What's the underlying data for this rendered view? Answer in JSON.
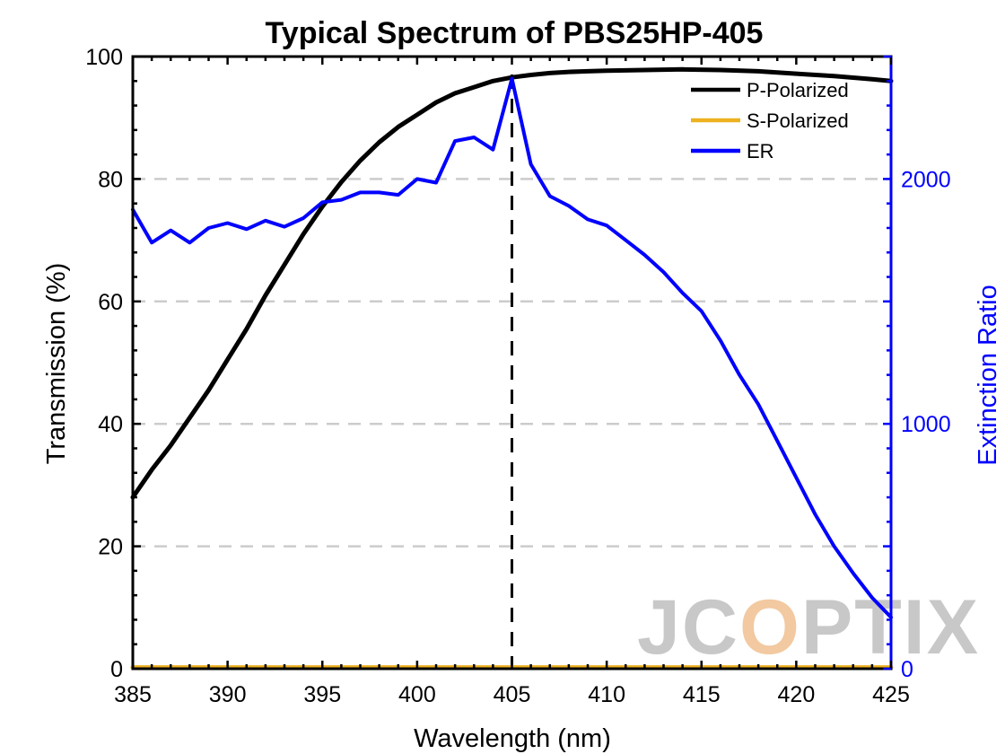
{
  "chart_data": {
    "type": "line",
    "title": "Typical Spectrum of PBS25HP-405",
    "xlabel": "Wavelength (nm)",
    "ylabel": "Transmission (%)",
    "y2label": "Extinction Ratio",
    "xlim": [
      385,
      425
    ],
    "ylim": [
      0,
      100
    ],
    "y2lim": [
      0,
      2500
    ],
    "xticks": [
      385,
      390,
      395,
      400,
      405,
      410,
      415,
      420,
      425
    ],
    "yticks": [
      0,
      20,
      40,
      60,
      80,
      100
    ],
    "y2ticks": [
      0,
      1000,
      2000
    ],
    "grid": "horizontal dashed",
    "legend_position": "top-right",
    "reference_line_x": 405,
    "watermark": "JCOPTIX",
    "colors": {
      "p_polarized": "#000000",
      "s_polarized": "#EDB120",
      "er": "#0000FF",
      "y2_axis": "#0000FF",
      "grid": "#cccccc",
      "watermark": "#c8c8c8",
      "watermark_accent": "#f2c9a0"
    },
    "series": [
      {
        "name": "P-Polarized",
        "axis": "left",
        "x": [
          385,
          386,
          387,
          388,
          389,
          390,
          391,
          392,
          393,
          394,
          395,
          396,
          397,
          398,
          399,
          400,
          401,
          402,
          403,
          404,
          405,
          406,
          407,
          408,
          409,
          410,
          412,
          414,
          416,
          418,
          420,
          422,
          424,
          425
        ],
        "values": [
          28,
          32.5,
          36.5,
          41,
          45.5,
          50.5,
          55.5,
          61,
          66,
          71,
          75.5,
          79.5,
          83,
          86,
          88.5,
          90.5,
          92.5,
          94,
          95,
          96,
          96.6,
          97,
          97.3,
          97.5,
          97.6,
          97.7,
          97.8,
          97.9,
          97.8,
          97.6,
          97.2,
          96.8,
          96.3,
          96
        ]
      },
      {
        "name": "S-Polarized",
        "axis": "left",
        "x": [
          385,
          395,
          405,
          415,
          425
        ],
        "values": [
          0.2,
          0.2,
          0.2,
          0.2,
          0.2
        ]
      },
      {
        "name": "ER",
        "axis": "right",
        "x": [
          385,
          386,
          387,
          388,
          389,
          390,
          391,
          392,
          393,
          394,
          395,
          396,
          397,
          398,
          399,
          400,
          401,
          402,
          403,
          404,
          405,
          406,
          407,
          408,
          409,
          410,
          411,
          412,
          413,
          414,
          415,
          416,
          417,
          418,
          419,
          420,
          421,
          422,
          423,
          424,
          425
        ],
        "values": [
          1875,
          1740,
          1790,
          1740,
          1800,
          1820,
          1795,
          1830,
          1805,
          1840,
          1905,
          1915,
          1945,
          1945,
          1935,
          2000,
          1985,
          2155,
          2170,
          2120,
          2410,
          2060,
          1930,
          1890,
          1835,
          1810,
          1750,
          1690,
          1620,
          1535,
          1460,
          1340,
          1200,
          1080,
          930,
          780,
          630,
          500,
          390,
          290,
          210
        ]
      }
    ]
  }
}
